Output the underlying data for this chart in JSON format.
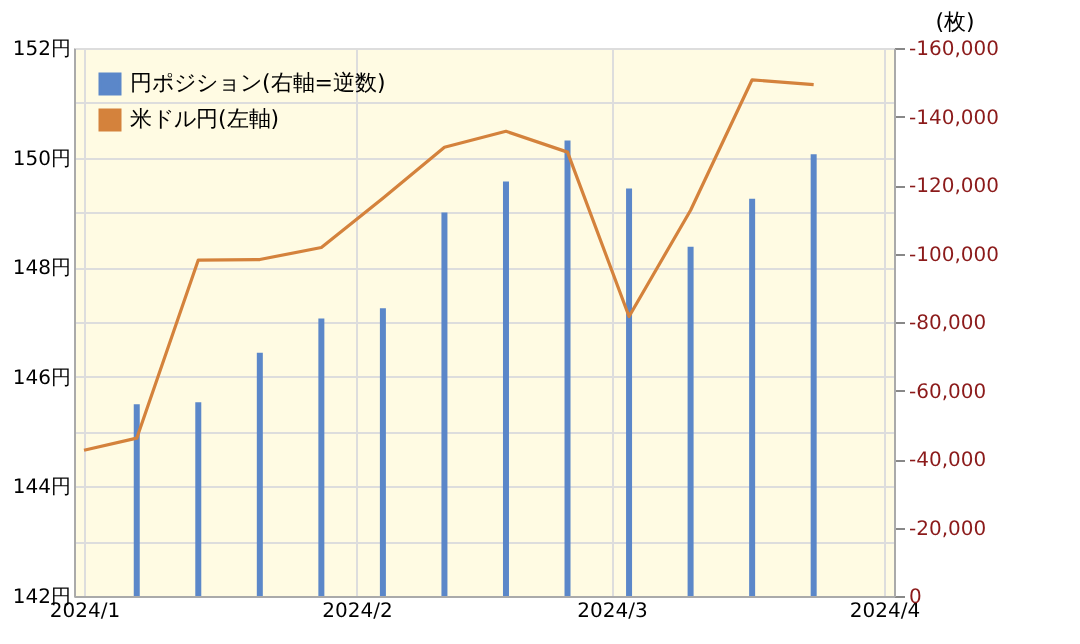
{
  "chart_data": {
    "type": "bar",
    "y2label": "(枚)",
    "legend": "top left",
    "grid": true,
    "xlim": [
      "2024-01-01",
      "2024-04-01"
    ],
    "xticks": [
      {
        "value": "2024-01-01",
        "label": "2024/1"
      },
      {
        "value": "2024-02-01",
        "label": "2024/2"
      },
      {
        "value": "2024-03-01",
        "label": "2024/3"
      },
      {
        "value": "2024-04-01",
        "label": "2024/4"
      }
    ],
    "ylim": [
      142,
      152
    ],
    "yticks": [
      {
        "value": 142,
        "label": "142円"
      },
      {
        "value": 143,
        "label": null
      },
      {
        "value": 144,
        "label": "144円"
      },
      {
        "value": 145,
        "label": null
      },
      {
        "value": 146,
        "label": "146円"
      },
      {
        "value": 147,
        "label": null
      },
      {
        "value": 148,
        "label": "148円"
      },
      {
        "value": 149,
        "label": null
      },
      {
        "value": 150,
        "label": "150円"
      },
      {
        "value": 151,
        "label": null
      },
      {
        "value": 152,
        "label": "152円"
      }
    ],
    "y2lim": [
      0,
      -160000
    ],
    "y2ticks": [
      {
        "value": 0,
        "label": "0"
      },
      {
        "value": -20000,
        "label": "-20,000"
      },
      {
        "value": -40000,
        "label": "-40,000"
      },
      {
        "value": -60000,
        "label": "-60,000"
      },
      {
        "value": -80000,
        "label": "-80,000"
      },
      {
        "value": -100000,
        "label": "-100,000"
      },
      {
        "value": -120000,
        "label": "-120,000"
      },
      {
        "value": -140000,
        "label": "-140,000"
      },
      {
        "value": -160000,
        "label": "-160,000"
      }
    ],
    "series": [
      {
        "name": "円ポジション(右軸=逆数)",
        "axis": "y2",
        "color": "#5b87c9",
        "x": [
          "2024-01-07",
          "2024-01-14",
          "2024-01-21",
          "2024-01-28",
          "2024-02-04",
          "2024-02-11",
          "2024-02-18",
          "2024-02-25",
          "2024-03-03",
          "2024-03-10",
          "2024-03-17",
          "2024-03-24"
        ],
        "values": [
          -56000,
          -56600,
          -71000,
          -81000,
          -84000,
          -112000,
          -121000,
          -133000,
          -119000,
          -102000,
          -116000,
          -129000
        ]
      },
      {
        "name": "米ドル円(左軸)",
        "type": "line",
        "color": "#d4823c",
        "line_style": "solid",
        "marker": "none",
        "x": [
          "2024-01-01",
          "2024-01-07",
          "2024-01-14",
          "2024-01-21",
          "2024-01-28",
          "2024-02-04",
          "2024-02-11",
          "2024-02-18",
          "2024-02-25",
          "2024-03-03",
          "2024-03-10",
          "2024-03-17",
          "2024-03-24"
        ],
        "values": [
          144.66,
          144.88,
          148.13,
          148.14,
          148.36,
          149.26,
          150.19,
          150.48,
          150.1,
          147.1,
          149.04,
          151.42,
          151.33
        ]
      }
    ]
  }
}
